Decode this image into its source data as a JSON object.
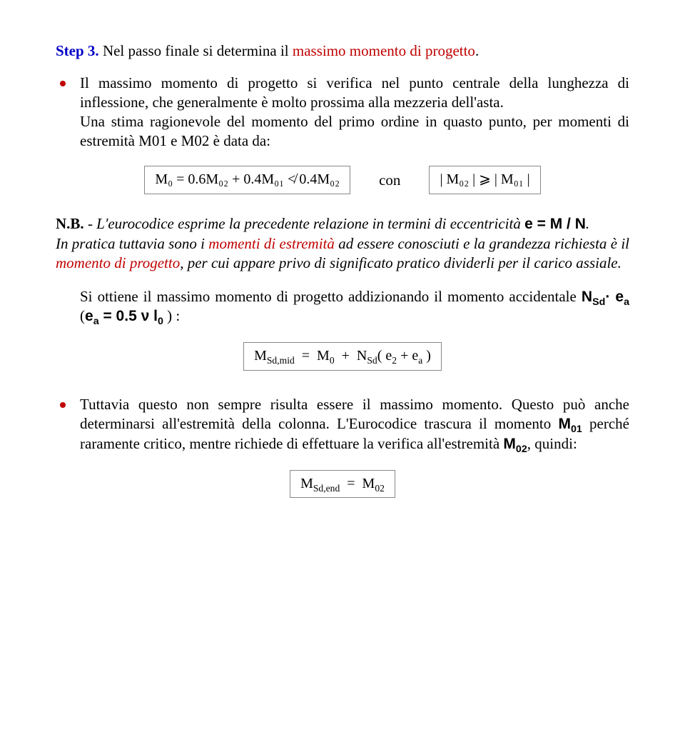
{
  "step": {
    "label": "Step 3.",
    "restPlain": " Nel passo finale si determina il ",
    "restRed": "massimo momento di progetto",
    "dot": "."
  },
  "bulletA": {
    "p1": "Il massimo momento di progetto si verifica nel punto centrale della lunghezza di inflessione, che generalmente è molto prossima alla mezzeria dell'asta.",
    "p2": "Una stima ragionevole del momento del primo ordine in quasto punto, per momenti di estremità  M01  e  M02  è data da:"
  },
  "eq1": "M₀ = 0.6M₀₂ + 0.4M₀₁ ≮ 0.4M₀₂",
  "con": "con",
  "eq2": "| M₀₂ |  ⩾  | M₀₁ |",
  "nb": {
    "head": "N.B.",
    "seg1": "  -  L'eurocodice esprime la precedente relazione in termini di eccentricità  ",
    "eMN": "e = M / N",
    "seg1b": ".",
    "seg2": "In pratica tuttavia sono i ",
    "red1": "momenti di estremità",
    "seg3": " ad essere conosciuti e la grandezza richiesta è il ",
    "red2": "momento di progetto",
    "seg4": ", per cui appare privo di significato pratico dividerli per il carico assiale."
  },
  "para2a": "Si ottiene il massimo momento di progetto addizionando il momento accidentale   ",
  "nsd": "N",
  "nsd_sub": "Sd",
  "dotsep": "·",
  "ea": "e",
  "ea_sub": "a",
  "paren_open": "  (",
  "ea_eq": " =  0.5 ν l",
  "zero_sub": "0",
  "paren_close": " ) :",
  "eq3": "M_{Sd,mid}  =  M₀  +  N_{Sd}( e₂ + eₐ )",
  "bulletB": {
    "s1": "Tuttavia questo non sempre risulta essere il massimo momento. Questo può anche determinarsi all'estremità della colonna. L'Eurocodice trascura  il momento  ",
    "m01": "M",
    "m01_sub": "01",
    "s2": "  perché raramente critico, mentre richiede di effettuare la verifica all'estremità ",
    "m02": "M",
    "m02_sub": "02",
    "s3": ", quindi:"
  },
  "eq4": "M_{Sd,end}  =  M₀₂"
}
